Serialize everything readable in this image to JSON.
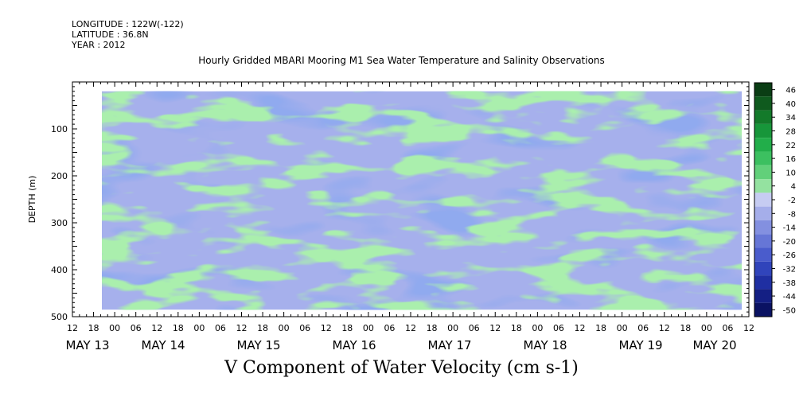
{
  "header": {
    "longitude": "LONGITUDE : 122W(-122)",
    "latitude": "LATITUDE : 36.8N",
    "year": "YEAR : 2012"
  },
  "chart_data": {
    "type": "heatmap",
    "title": "Hourly Gridded MBARI Mooring M1 Sea Water Temperature and Salinity Observations",
    "xlabel": "V Component of Water Velocity (cm s-1)",
    "ylabel": "DEPTH (m)",
    "ylim": [
      500,
      0
    ],
    "y_ticks": [
      100,
      200,
      300,
      400,
      500
    ],
    "x_hour_ticks": [
      "12",
      "18",
      "00",
      "06",
      "12",
      "18",
      "00",
      "06",
      "12",
      "18",
      "00",
      "06",
      "12",
      "18",
      "00",
      "06",
      "12",
      "18",
      "00",
      "06",
      "12",
      "18",
      "00",
      "06",
      "12",
      "18",
      "00",
      "06",
      "12",
      "18",
      "00",
      "06",
      "12"
    ],
    "date_labels": [
      "MAY 13",
      "MAY 14",
      "MAY 15",
      "MAY 16",
      "MAY 17",
      "MAY 18",
      "MAY 19",
      "MAY 20"
    ],
    "colorbar": {
      "levels": [
        "46",
        "40",
        "34",
        "28",
        "22",
        "16",
        "10",
        "4",
        "-2",
        "-8",
        "-14",
        "-20",
        "-26",
        "-32",
        "-38",
        "-44",
        "-50"
      ],
      "colors": [
        "#0a3d14",
        "#0f5a1e",
        "#137a2a",
        "#17963a",
        "#22ae4a",
        "#3cc060",
        "#62d07a",
        "#94e2a0",
        "#c6ccf2",
        "#a5aeea",
        "#8390e0",
        "#6676d6",
        "#4a5ccc",
        "#3044bb",
        "#1f2fa2",
        "#141f84",
        "#0a1262"
      ]
    },
    "data_extent": {
      "depth_min": 20,
      "depth_max": 485
    }
  }
}
